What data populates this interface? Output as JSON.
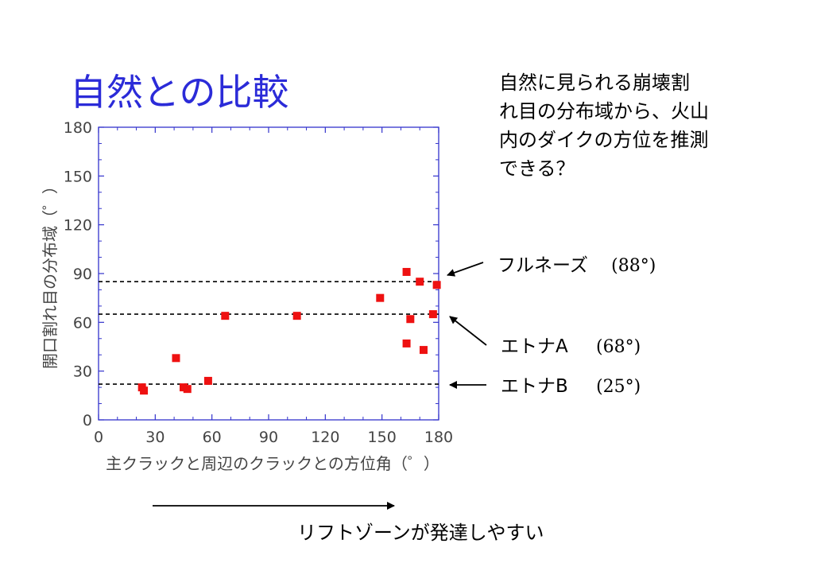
{
  "slide": {
    "title": "自然との比較",
    "question": "自然に見られる崩壊割\nれ目の分布域から、火山\n内のダイクの方位を推測\nできる？",
    "bottom_text": "リフトゾーンが発達しやすい"
  },
  "annotations": [
    {
      "label": "フルネーズ",
      "angle_text": "(88°)",
      "y_value": 85
    },
    {
      "label": "エトナA",
      "angle_text": "(68°)",
      "y_value": 65
    },
    {
      "label": "エトナB",
      "angle_text": "(25°)",
      "y_value": 22
    }
  ],
  "colors": {
    "axis": "#3333cc",
    "marker": "#ee1111",
    "title": "#2b2bd8"
  },
  "chart_data": {
    "type": "scatter",
    "xlabel": "主クラックと周辺のクラックとの方位角（゜）",
    "ylabel": "開口割れ目の分布域（゜）",
    "xlim": [
      0,
      180
    ],
    "ylim": [
      0,
      180
    ],
    "xticks": [
      0,
      30,
      60,
      90,
      120,
      150,
      180
    ],
    "yticks": [
      0,
      30,
      60,
      90,
      120,
      150,
      180
    ],
    "grid": false,
    "reference_lines": [
      85,
      65,
      22
    ],
    "points": [
      {
        "x": 23,
        "y": 20
      },
      {
        "x": 24,
        "y": 18
      },
      {
        "x": 41,
        "y": 38
      },
      {
        "x": 45,
        "y": 20
      },
      {
        "x": 47,
        "y": 19
      },
      {
        "x": 58,
        "y": 24
      },
      {
        "x": 67,
        "y": 64
      },
      {
        "x": 105,
        "y": 64
      },
      {
        "x": 149,
        "y": 75
      },
      {
        "x": 163,
        "y": 91
      },
      {
        "x": 163,
        "y": 47
      },
      {
        "x": 165,
        "y": 62
      },
      {
        "x": 170,
        "y": 85
      },
      {
        "x": 172,
        "y": 43
      },
      {
        "x": 177,
        "y": 65
      },
      {
        "x": 179,
        "y": 83
      }
    ]
  }
}
